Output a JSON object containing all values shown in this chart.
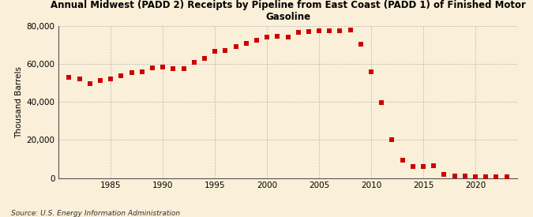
{
  "title": "Annual Midwest (PADD 2) Receipts by Pipeline from East Coast (PADD 1) of Finished Motor\nGasoline",
  "ylabel": "Thousand Barrels",
  "source": "Source: U.S. Energy Information Administration",
  "background_color": "#faefd8",
  "plot_background_color": "#faefd8",
  "marker_color": "#cc0000",
  "marker_size": 18,
  "grid_color": "#aaaaaa",
  "years": [
    1981,
    1982,
    1983,
    1984,
    1985,
    1986,
    1987,
    1988,
    1989,
    1990,
    1991,
    1992,
    1993,
    1994,
    1995,
    1996,
    1997,
    1998,
    1999,
    2000,
    2001,
    2002,
    2003,
    2004,
    2005,
    2006,
    2007,
    2008,
    2009,
    2010,
    2011,
    2012,
    2013,
    2014,
    2015,
    2016,
    2017,
    2018,
    2019,
    2020,
    2021,
    2022,
    2023
  ],
  "values": [
    53000,
    52000,
    49500,
    51500,
    52000,
    54000,
    55500,
    56000,
    58000,
    58500,
    57500,
    57500,
    61000,
    63000,
    66500,
    67000,
    69000,
    71000,
    72500,
    74000,
    74500,
    74000,
    76500,
    77000,
    77500,
    77500,
    77500,
    78000,
    70500,
    56000,
    39500,
    20000,
    9500,
    6000,
    6000,
    6500,
    2000,
    1000,
    1000,
    500,
    500,
    500,
    500
  ],
  "ylim": [
    0,
    80000
  ],
  "yticks": [
    0,
    20000,
    40000,
    60000,
    80000
  ],
  "ytick_labels": [
    "0",
    "20,000",
    "40,000",
    "60,000",
    "80,000"
  ],
  "xlim": [
    1980,
    2024
  ],
  "xticks": [
    1985,
    1990,
    1995,
    2000,
    2005,
    2010,
    2015,
    2020
  ]
}
